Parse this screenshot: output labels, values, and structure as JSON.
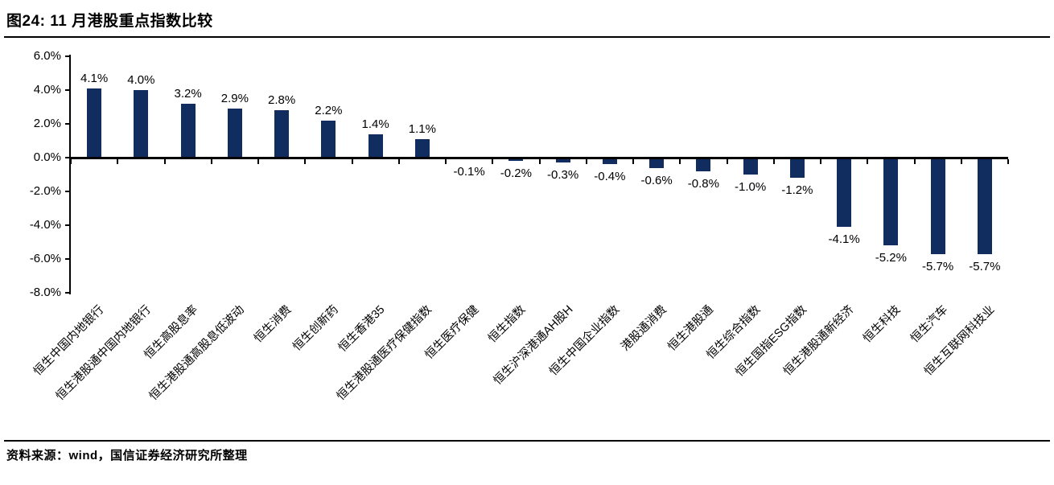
{
  "page": {
    "title": "图24: 11 月港股重点指数比较",
    "source": "资料来源：wind，国信证券经济研究所整理"
  },
  "chart_data": {
    "type": "bar",
    "title": "图24: 11 月港股重点指数比较",
    "categories": [
      "恒生中国内地银行",
      "恒生港股通中国内地银行",
      "恒生高股息率",
      "恒生港股通高股息低波动",
      "恒生消费",
      "恒生创新药",
      "恒生香港35",
      "恒生港股通医疗保健指数",
      "恒生医疗保健",
      "恒生指数",
      "恒生沪深港通AH股H",
      "恒生中国企业指数",
      "港股通消费",
      "恒生港股通",
      "恒生综合指数",
      "恒生国指ESG指数",
      "恒生港股通新经济",
      "恒生科技",
      "恒生汽车",
      "恒生互联网科技业"
    ],
    "values": [
      4.1,
      4.0,
      3.2,
      2.9,
      2.8,
      2.2,
      1.4,
      1.1,
      -0.1,
      -0.2,
      -0.3,
      -0.4,
      -0.6,
      -0.8,
      -1.0,
      -1.2,
      -4.1,
      -5.2,
      -5.7,
      -5.7
    ],
    "value_labels": [
      "4.1%",
      "4.0%",
      "3.2%",
      "2.9%",
      "2.8%",
      "2.2%",
      "1.4%",
      "1.1%",
      "-0.1%",
      "-0.2%",
      "-0.3%",
      "-0.4%",
      "-0.6%",
      "-0.8%",
      "-1.0%",
      "-1.2%",
      "-4.1%",
      "-5.2%",
      "-5.7%",
      "-5.7%"
    ],
    "xlabel": "",
    "ylabel": "",
    "ylim": [
      -8,
      6
    ],
    "ytick_values": [
      6,
      4,
      2,
      0,
      -2,
      -4,
      -6,
      -8
    ],
    "ytick_labels": [
      "6.0%",
      "4.0%",
      "2.0%",
      "0.0%",
      "-2.0%",
      "-4.0%",
      "-6.0%",
      "-8.0%"
    ],
    "x_label_rotation_deg": 45,
    "grid": false,
    "legend": "none",
    "bar_color": "#112C5F",
    "axis_color": "#000000",
    "source": "资料来源：wind，国信证券经济研究所整理"
  }
}
